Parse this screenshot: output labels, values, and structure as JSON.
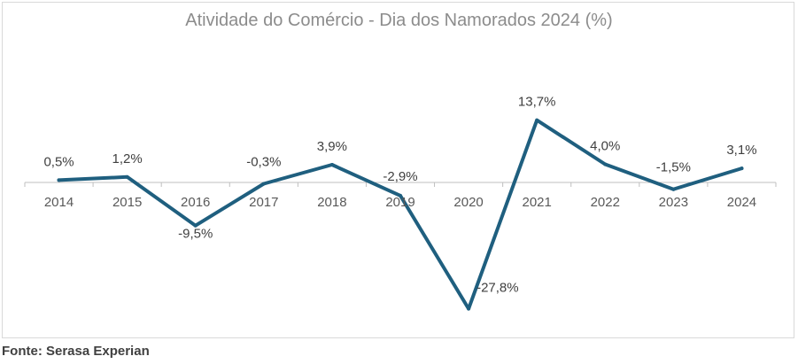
{
  "chart_data": {
    "type": "line",
    "title": "Atividade do Comércio - Dia dos Namorados 2024 (%)",
    "categories": [
      "2014",
      "2015",
      "2016",
      "2017",
      "2018",
      "2019",
      "2020",
      "2021",
      "2022",
      "2023",
      "2024"
    ],
    "values": [
      0.5,
      1.2,
      -9.5,
      -0.3,
      3.9,
      -2.9,
      -27.8,
      13.7,
      4.0,
      -1.5,
      3.1
    ],
    "data_labels": [
      "0,5%",
      "1,2%",
      "-9,5%",
      "-0,3%",
      "3,9%",
      "-2,9%",
      "-27,8%",
      "13,7%",
      "4,0%",
      "-1,5%",
      "3,1%"
    ],
    "xlabel": "",
    "ylabel": "",
    "ylim": [
      -30,
      18
    ],
    "grid": false,
    "legend": "none",
    "line_color": "#1f5f7f"
  },
  "footer": {
    "source": "Fonte: Serasa Experian"
  }
}
